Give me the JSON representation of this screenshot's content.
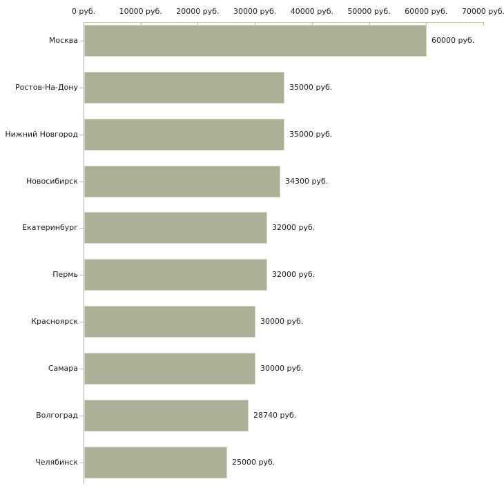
{
  "chart_data": {
    "type": "bar",
    "orientation": "horizontal",
    "title": "",
    "unit": "руб.",
    "categories": [
      "Москва",
      "Ростов-На-Дону",
      "Нижний Новгород",
      "Новосибирск",
      "Екатеринбург",
      "Пермь",
      "Красноярск",
      "Самара",
      "Волгоград",
      "Челябинск"
    ],
    "values": [
      60000,
      35000,
      35000,
      34300,
      32000,
      32000,
      30000,
      30000,
      28740,
      25000
    ],
    "value_labels": [
      "60000 руб.",
      "35000 руб.",
      "35000 руб.",
      "34300 руб.",
      "32000 руб.",
      "32000 руб.",
      "30000 руб.",
      "30000 руб.",
      "28740 руб.",
      "25000 руб."
    ],
    "x_axis": {
      "position": "top",
      "xlim": [
        0,
        70000
      ],
      "tick_values": [
        0,
        10000,
        20000,
        30000,
        40000,
        50000,
        60000,
        70000
      ],
      "tick_labels": [
        "0 руб.",
        "10000 руб.",
        "20000 руб.",
        "30000 руб.",
        "40000 руб.",
        "50000 руб.",
        "60000 руб.",
        "70000 руб."
      ]
    },
    "grid": false,
    "legend": null,
    "colors": {
      "bar_fill": "#aab197",
      "bar_border": "#d5d9c6",
      "x_axis_line": "#c9c9a2",
      "x_axis_tick": "#b9b98c",
      "y_axis_line": "#ababab",
      "y_axis_tick": "#b5b5b5",
      "text": "#191919",
      "background": "#ffffff"
    }
  }
}
